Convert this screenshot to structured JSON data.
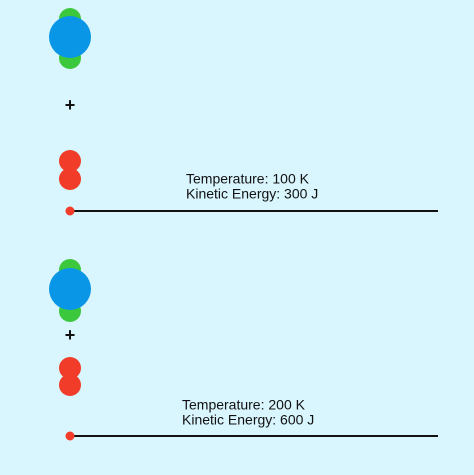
{
  "panels": [
    {
      "plus": "+",
      "temperature": "Temperature: 100 K",
      "kinetic_energy": "Kinetic Energy: 300 J"
    },
    {
      "plus": "+",
      "temperature": "Temperature: 200 K",
      "kinetic_energy": "Kinetic Energy: 600 J"
    }
  ]
}
